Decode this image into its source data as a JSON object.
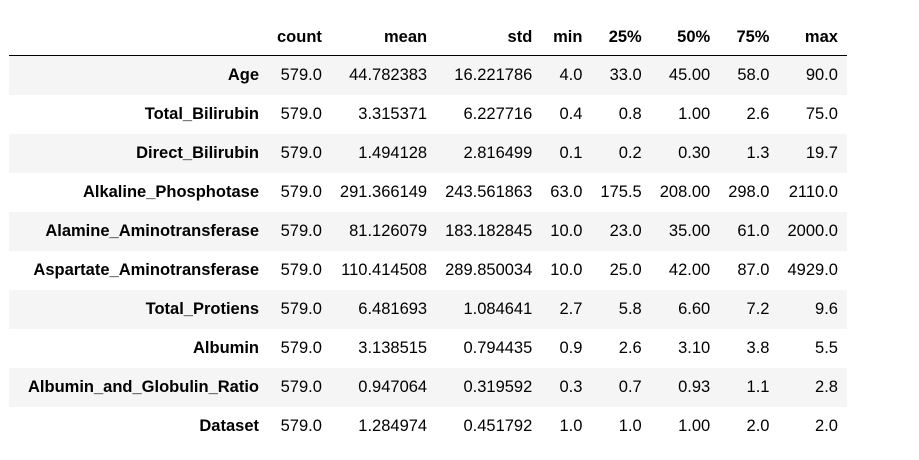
{
  "table": {
    "index_header": "",
    "columns": [
      "count",
      "mean",
      "std",
      "min",
      "25%",
      "50%",
      "75%",
      "max"
    ],
    "rows": [
      {
        "label": "Age",
        "values": [
          "579.0",
          "44.782383",
          "16.221786",
          "4.0",
          "33.0",
          "45.00",
          "58.0",
          "90.0"
        ]
      },
      {
        "label": "Total_Bilirubin",
        "values": [
          "579.0",
          "3.315371",
          "6.227716",
          "0.4",
          "0.8",
          "1.00",
          "2.6",
          "75.0"
        ]
      },
      {
        "label": "Direct_Bilirubin",
        "values": [
          "579.0",
          "1.494128",
          "2.816499",
          "0.1",
          "0.2",
          "0.30",
          "1.3",
          "19.7"
        ]
      },
      {
        "label": "Alkaline_Phosphotase",
        "values": [
          "579.0",
          "291.366149",
          "243.561863",
          "63.0",
          "175.5",
          "208.00",
          "298.0",
          "2110.0"
        ]
      },
      {
        "label": "Alamine_Aminotransferase",
        "values": [
          "579.0",
          "81.126079",
          "183.182845",
          "10.0",
          "23.0",
          "35.00",
          "61.0",
          "2000.0"
        ]
      },
      {
        "label": "Aspartate_Aminotransferase",
        "values": [
          "579.0",
          "110.414508",
          "289.850034",
          "10.0",
          "25.0",
          "42.00",
          "87.0",
          "4929.0"
        ]
      },
      {
        "label": "Total_Protiens",
        "values": [
          "579.0",
          "6.481693",
          "1.084641",
          "2.7",
          "5.8",
          "6.60",
          "7.2",
          "9.6"
        ]
      },
      {
        "label": "Albumin",
        "values": [
          "579.0",
          "3.138515",
          "0.794435",
          "0.9",
          "2.6",
          "3.10",
          "3.8",
          "5.5"
        ]
      },
      {
        "label": "Albumin_and_Globulin_Ratio",
        "values": [
          "579.0",
          "0.947064",
          "0.319592",
          "0.3",
          "0.7",
          "0.93",
          "1.1",
          "2.8"
        ]
      },
      {
        "label": "Dataset",
        "values": [
          "579.0",
          "1.284974",
          "0.451792",
          "1.0",
          "1.0",
          "1.00",
          "2.0",
          "2.0"
        ]
      }
    ]
  },
  "colors": {
    "stripe": "#f5f5f5",
    "background": "#ffffff",
    "header_rule": "#000000"
  }
}
